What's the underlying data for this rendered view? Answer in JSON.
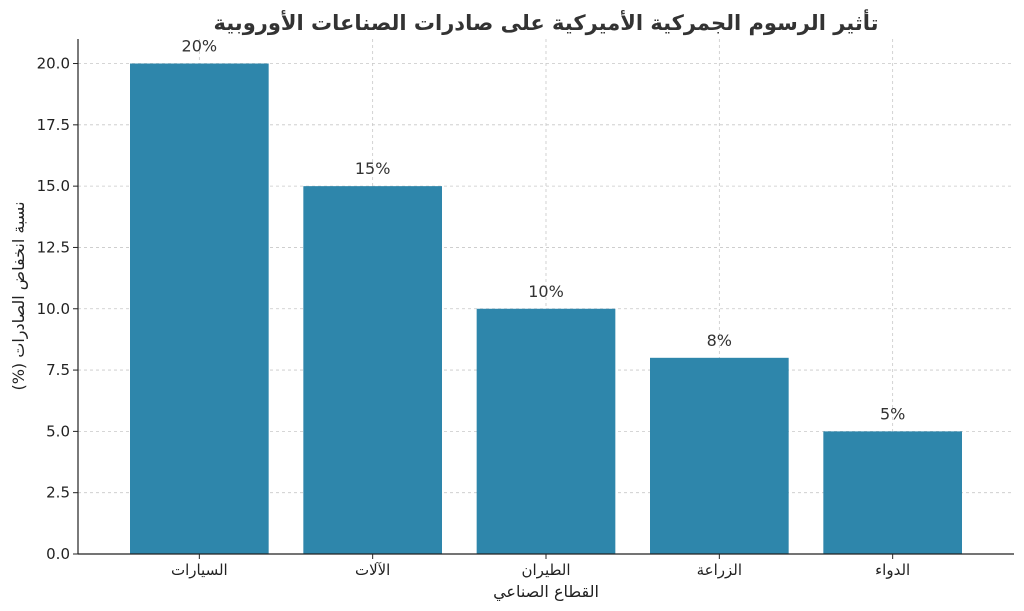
{
  "chart_data": {
    "type": "bar",
    "title": "تأثير الرسوم الجمركية الأميركية على صادرات الصناعات الأوروبية",
    "xlabel": "القطاع الصناعي",
    "ylabel": "نسبة انخفاض الصادرات (%)",
    "categories": [
      "السيارات",
      "الآلات",
      "الطيران",
      "الزراعة",
      "الدواء"
    ],
    "values": [
      20,
      15,
      10,
      8,
      5
    ],
    "data_labels": [
      "20%",
      "15%",
      "10%",
      "8%",
      "5%"
    ],
    "ylim": [
      0,
      21
    ],
    "yticks": [
      0,
      2.5,
      5,
      7.5,
      10,
      12.5,
      15,
      17.5,
      20
    ],
    "ytick_labels": [
      "0.0",
      "2.5",
      "5.0",
      "7.5",
      "10.0",
      "12.5",
      "15.0",
      "17.5",
      "20.0"
    ],
    "grid": true,
    "bar_color": "#2e86ab"
  }
}
